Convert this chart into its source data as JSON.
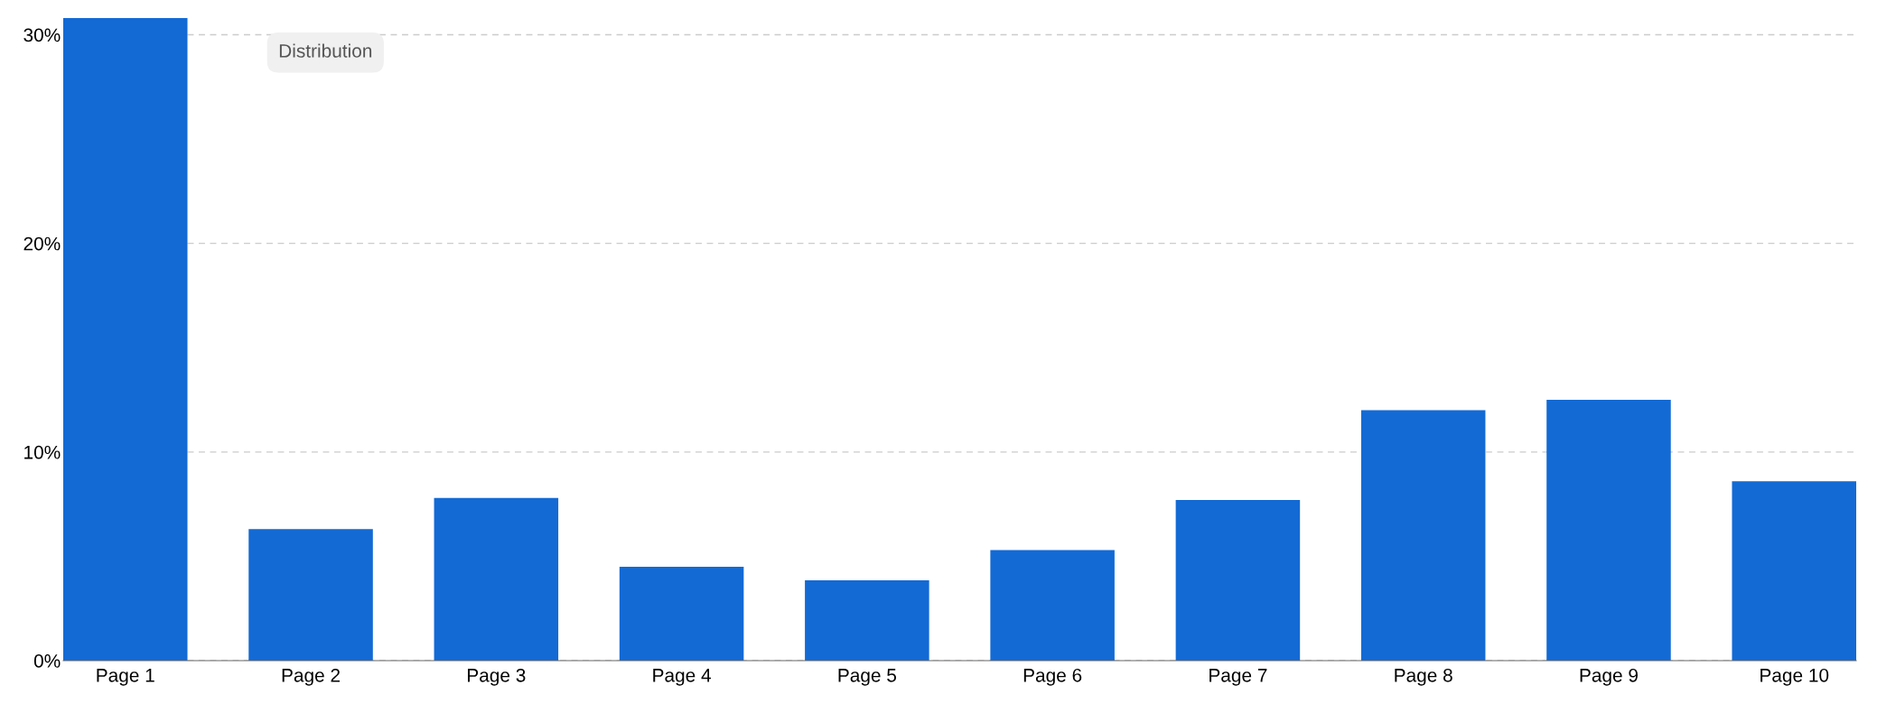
{
  "chart_data": {
    "type": "bar",
    "categories": [
      "Page 1",
      "Page 2",
      "Page 3",
      "Page 4",
      "Page 5",
      "Page 6",
      "Page 7",
      "Page 8",
      "Page 9",
      "Page 10"
    ],
    "values": [
      30.8,
      6.3,
      7.8,
      4.5,
      3.85,
      5.3,
      7.7,
      12.0,
      12.5,
      8.6
    ],
    "color": "#136ad5",
    "ylim": [
      0,
      30.8
    ],
    "yticks": [
      {
        "value": 0,
        "label": "0%"
      },
      {
        "value": 10,
        "label": "10%"
      },
      {
        "value": 20,
        "label": "20%"
      },
      {
        "value": 30,
        "label": "30%"
      }
    ],
    "grid": "y",
    "annotations": [
      "Distribution"
    ]
  }
}
